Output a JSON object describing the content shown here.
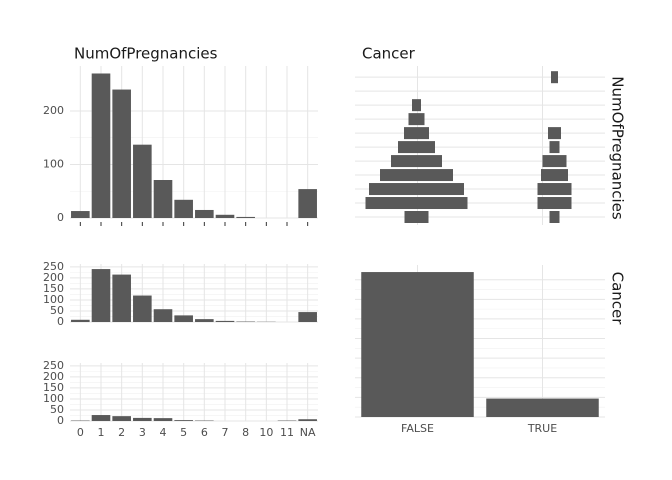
{
  "column_labels": [
    "NumOfPregnancies",
    "Cancer"
  ],
  "row_labels": [
    "NumOfPregnancies",
    "Cancer"
  ],
  "chart_data": [
    {
      "type": "bar",
      "values": [
        13,
        270,
        240,
        137,
        71,
        34,
        15,
        6,
        2,
        0,
        0,
        54
      ],
      "color": "#595959",
      "ylim": [
        0,
        284
      ],
      "yticks": [
        0,
        100,
        200
      ],
      "grid": true
    },
    {
      "type": "centered-bar",
      "color": "#595959",
      "grid": true,
      "series": [
        {
          "values": [
            24,
            102,
            95,
            73,
            51,
            37,
            25,
            16,
            9,
            null,
            null
          ]
        },
        {
          "values": [
            10,
            34,
            34,
            27,
            24,
            10,
            13,
            null,
            null,
            null,
            7
          ]
        }
      ]
    },
    {
      "type": "bar",
      "values": [
        10,
        240,
        215,
        120,
        58,
        30,
        13,
        5,
        2,
        1,
        0,
        45
      ],
      "color": "#595959",
      "ylim": [
        0,
        263
      ],
      "yticks": [
        0,
        50,
        100,
        150,
        200,
        250
      ],
      "grid": true
    },
    {
      "type": "bar",
      "categories": [
        "0",
        "1",
        "2",
        "3",
        "4",
        "5",
        "6",
        "7",
        "8",
        "10",
        "11",
        "NA"
      ],
      "values": [
        2,
        27,
        22,
        14,
        13,
        4,
        2,
        0,
        0,
        0,
        2,
        8
      ],
      "color": "#595959",
      "ylim": [
        0,
        263
      ],
      "yticks": [
        0,
        50,
        100,
        150,
        200,
        250
      ],
      "grid": true
    },
    {
      "type": "bar",
      "categories": [
        "FALSE",
        "TRUE"
      ],
      "values": [
        739,
        94
      ],
      "color": "#595959",
      "ylim": [
        0,
        775
      ],
      "yticks": [
        0,
        100,
        200,
        300,
        400,
        500,
        600,
        700
      ],
      "tick_labels": false,
      "grid": true
    }
  ]
}
